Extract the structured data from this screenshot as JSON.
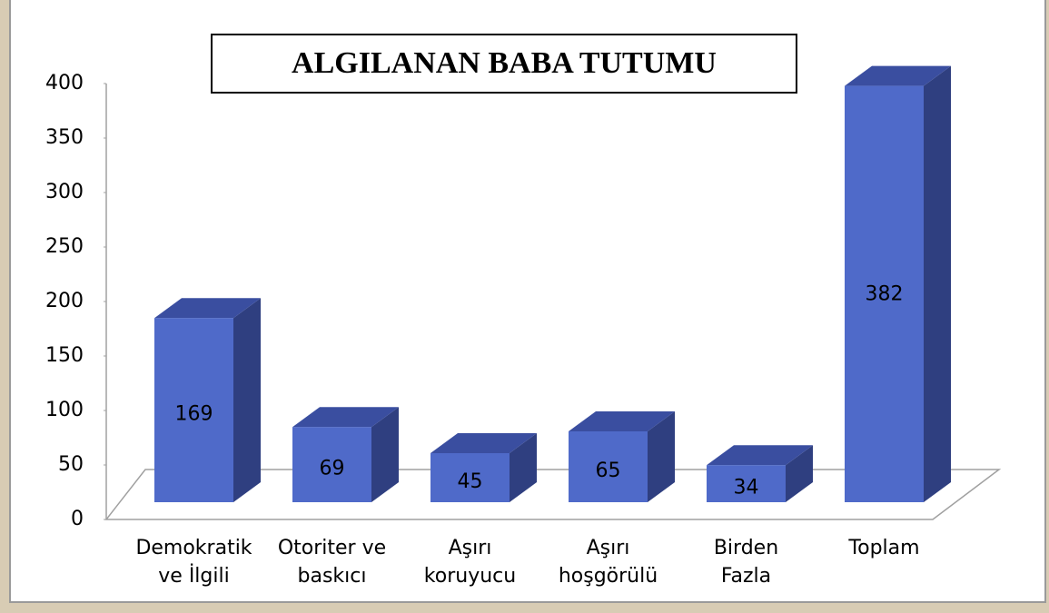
{
  "chart_data": {
    "type": "bar3d",
    "title": "ALGILANAN BABA TUTUMU",
    "categories": [
      "Demokratik\nve İlgili",
      "Otoriter ve\nbaskıcı",
      "Aşırı\nkoruyucu",
      "Aşırı\nhoşgörülü",
      "Birden\nFazla",
      "Toplam"
    ],
    "values": [
      169,
      69,
      45,
      65,
      34,
      382
    ],
    "color": "#4f6ac9",
    "ylim": [
      0,
      400
    ],
    "yticks": [
      0,
      50,
      100,
      150,
      200,
      250,
      300,
      350,
      400
    ]
  }
}
